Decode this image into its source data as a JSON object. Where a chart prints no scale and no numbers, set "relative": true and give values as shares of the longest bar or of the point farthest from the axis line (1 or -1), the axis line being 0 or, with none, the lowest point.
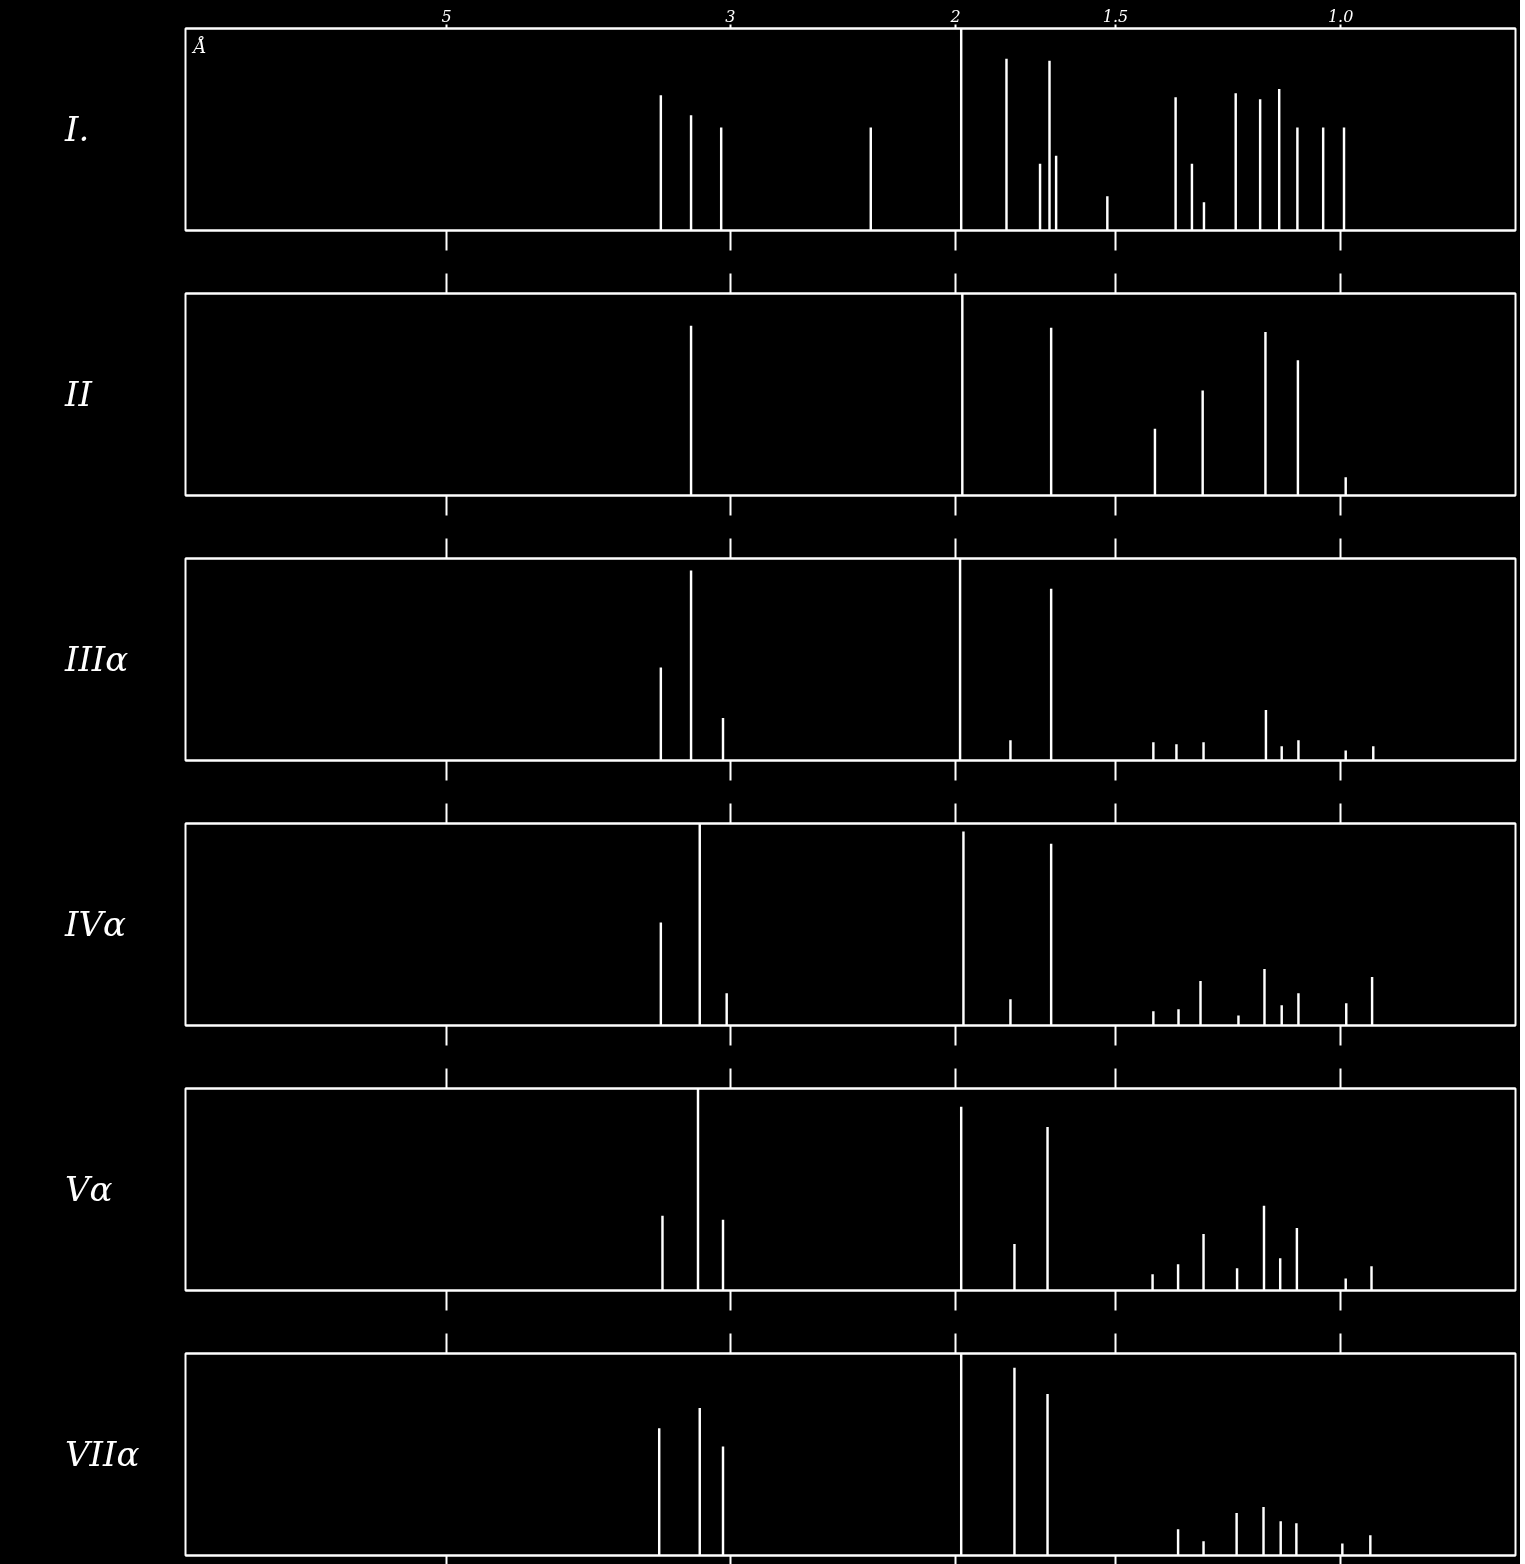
{
  "chart_data": [
    {
      "type": "bar",
      "title": "I.",
      "xlabel": "Å",
      "relative": true,
      "color": "#ffffff",
      "log": "x",
      "xlim": [
        8,
        0.73
      ],
      "xticks": [
        5,
        3,
        2,
        1.5,
        {
          "value": 1.0,
          "label": "1.0"
        }
      ],
      "x": [
        3.4,
        3.22,
        3.05,
        2.33,
        1.98,
        1.825,
        1.718,
        1.689,
        1.669,
        1.522,
        1.346,
        1.307,
        1.279,
        1.208,
        1.156,
        1.117,
        1.081,
        1.032,
        0.994
      ],
      "values": [
        0.67,
        0.57,
        0.51,
        0.51,
        1.0,
        0.85,
        0.33,
        0.84,
        0.37,
        0.17,
        0.66,
        0.33,
        0.14,
        0.68,
        0.65,
        0.7,
        0.51,
        0.51,
        0.51
      ]
    },
    {
      "type": "bar",
      "title": "II",
      "relative": true,
      "color": "#ffffff",
      "log": "x",
      "tick_labels": false,
      "xlim": [
        8,
        0.73
      ],
      "xticks": [
        5,
        3,
        2,
        1.5,
        1.0
      ],
      "x": [
        3.22,
        1.976,
        1.684,
        1.397,
        1.282,
        1.145,
        1.08,
        0.991
      ],
      "values": [
        0.84,
        1.0,
        0.83,
        0.33,
        0.52,
        0.81,
        0.67,
        0.09
      ]
    },
    {
      "type": "bar",
      "title": "IIIα",
      "relative": true,
      "color": "#ffffff",
      "log": "x",
      "tick_labels": false,
      "xlim": [
        8,
        0.73
      ],
      "xticks": [
        5,
        3,
        2,
        1.5,
        1.0
      ],
      "x": [
        3.4,
        3.22,
        3.04,
        1.984,
        1.812,
        1.684,
        1.401,
        1.344,
        1.28,
        1.144,
        1.112,
        1.079,
        0.991,
        0.943
      ],
      "values": [
        0.46,
        0.94,
        0.21,
        1.0,
        0.1,
        0.85,
        0.09,
        0.08,
        0.09,
        0.25,
        0.07,
        0.1,
        0.05,
        0.07
      ]
    },
    {
      "type": "bar",
      "title": "IVα",
      "relative": true,
      "color": "#ffffff",
      "log": "x",
      "tick_labels": false,
      "xlim": [
        8,
        0.73
      ],
      "xticks": [
        5,
        3,
        2,
        1.5,
        1.0
      ],
      "x": [
        3.4,
        3.17,
        3.02,
        1.972,
        1.812,
        1.684,
        1.401,
        1.339,
        1.287,
        1.202,
        1.147,
        1.112,
        1.079,
        0.99,
        0.945
      ],
      "values": [
        0.51,
        1.0,
        0.16,
        0.96,
        0.13,
        0.9,
        0.07,
        0.08,
        0.22,
        0.05,
        0.28,
        0.1,
        0.16,
        0.11,
        0.24
      ]
    },
    {
      "type": "bar",
      "title": "Vα",
      "relative": true,
      "color": "#ffffff",
      "log": "x",
      "tick_labels": false,
      "xlim": [
        8,
        0.73
      ],
      "xticks": [
        5,
        3,
        2,
        1.5,
        1.0
      ],
      "x": [
        3.39,
        3.18,
        3.04,
        1.98,
        1.799,
        1.695,
        1.403,
        1.34,
        1.28,
        1.205,
        1.148,
        1.115,
        1.082,
        0.991,
        0.946
      ],
      "values": [
        0.37,
        1.0,
        0.35,
        0.91,
        0.23,
        0.81,
        0.08,
        0.13,
        0.28,
        0.11,
        0.42,
        0.16,
        0.31,
        0.06,
        0.12
      ]
    },
    {
      "type": "bar",
      "title": "VIIα",
      "relative": true,
      "color": "#ffffff",
      "log": "x",
      "tick_labels": false,
      "xlim": [
        8,
        0.73
      ],
      "xticks": [
        5,
        3,
        2,
        1.5,
        1.0
      ],
      "x": [
        3.41,
        3.17,
        3.04,
        1.98,
        1.799,
        1.695,
        1.34,
        1.28,
        1.206,
        1.149,
        1.114,
        1.083,
        0.997,
        0.948
      ],
      "values": [
        0.63,
        0.73,
        0.54,
        1.0,
        0.93,
        0.8,
        0.13,
        0.07,
        0.21,
        0.24,
        0.17,
        0.16,
        0.06,
        0.1
      ]
    }
  ]
}
